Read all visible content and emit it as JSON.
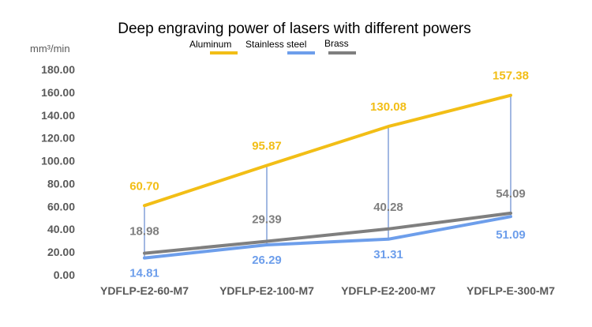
{
  "chart_data": {
    "type": "line",
    "title": "Deep engraving power of lasers with different powers",
    "ylabel": "mm³/min",
    "xlabel": "",
    "categories": [
      "YDFLP-E2-60-M7",
      "YDFLP-E2-100-M7",
      "YDFLP-E2-200-M7",
      "YDFLP-E-300-M7"
    ],
    "series": [
      {
        "name": "Aluminum",
        "color": "#F2BE16",
        "values": [
          60.7,
          95.87,
          130.08,
          157.38
        ]
      },
      {
        "name": "Stainless steel",
        "color": "#6D9EEB",
        "values": [
          14.81,
          26.29,
          31.31,
          51.09
        ]
      },
      {
        "name": "Brass",
        "color": "#7F7F7F",
        "values": [
          18.98,
          29.39,
          40.28,
          54.09
        ]
      }
    ],
    "yticks": [
      "0.00",
      "20.00",
      "40.00",
      "60.00",
      "80.00",
      "100.00",
      "120.00",
      "140.00",
      "160.00",
      "180.00"
    ],
    "ylim": [
      0,
      180
    ],
    "drop_lines": true,
    "drop_line_color": "#4472C4",
    "legend_position": "top",
    "grid": false
  }
}
